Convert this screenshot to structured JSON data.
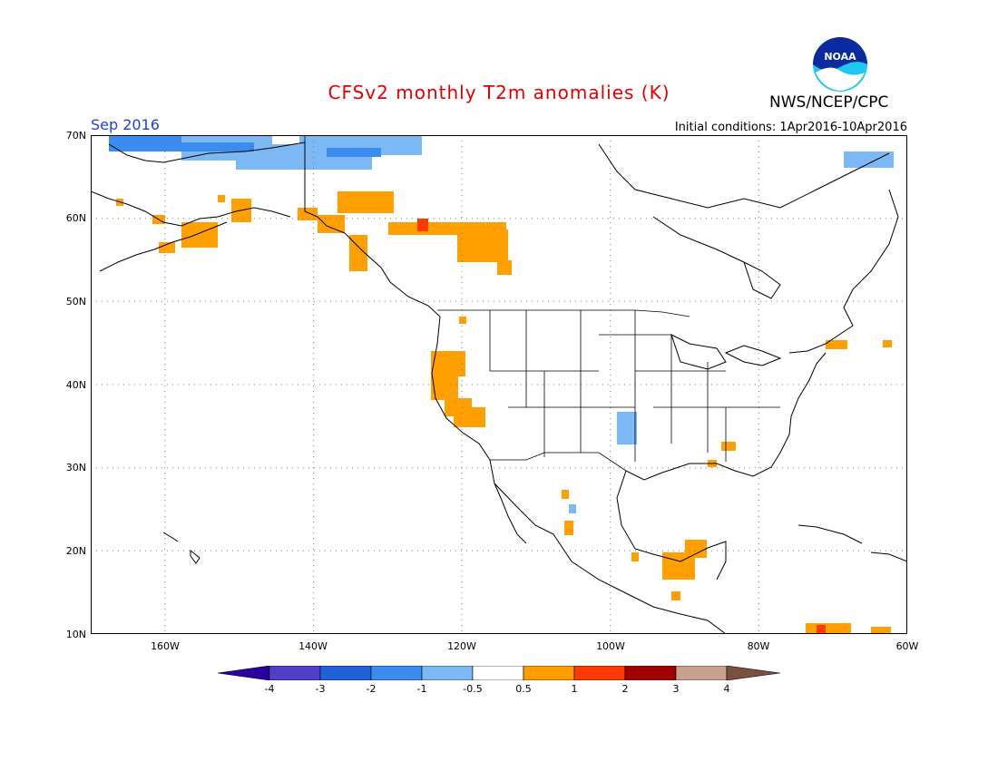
{
  "header": {
    "title": "CFSv2 monthly T2m anomalies (K)",
    "org": "NWS/NCEP/CPC",
    "valid": "Sep 2016",
    "init": "Initial conditions: 1Apr2016-10Apr2016"
  },
  "logo": {
    "text": "NOAA",
    "icon": "noaa-logo-icon"
  },
  "lat_labels": [
    "70N",
    "60N",
    "50N",
    "40N",
    "30N",
    "20N",
    "10N"
  ],
  "lon_labels": [
    "160W",
    "140W",
    "120W",
    "100W",
    "80W",
    "60W"
  ],
  "colorbar": {
    "labels": [
      "-4",
      "-3",
      "-2",
      "-1",
      "-0.5",
      "0.5",
      "1",
      "2",
      "3",
      "4"
    ],
    "colors": [
      "#2a00a0",
      "#5040c8",
      "#2060d8",
      "#3c8cf0",
      "#7cb8f4",
      "#ffffff",
      "#ff9c00",
      "#ff3a00",
      "#a00000",
      "#c8a090",
      "#7a5040"
    ]
  },
  "colors": {
    "warm": "#ffa000",
    "hot": "#ff3a00",
    "cool": "#7cb8f4",
    "cooler": "#3c8cf0"
  }
}
